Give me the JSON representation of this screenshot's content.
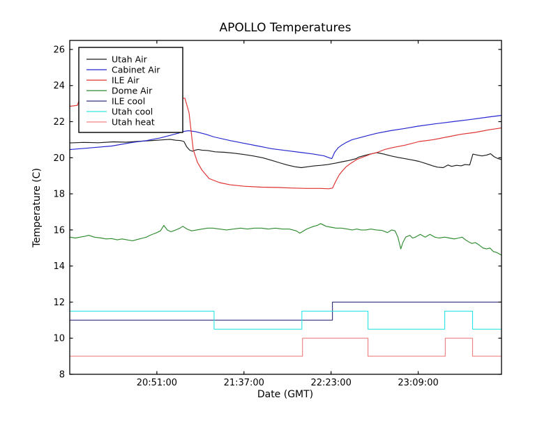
{
  "chart_data": {
    "type": "line",
    "title": "APOLLO Temperatures",
    "xlabel": "Date (GMT)",
    "ylabel": "Temperature (C)",
    "grid": false,
    "legend_position": "upper left",
    "x_unit": "minutes after 20:00 GMT",
    "x_range": [
      5,
      233
    ],
    "y_range": [
      8,
      26.5
    ],
    "y_ticks": [
      8,
      10,
      12,
      14,
      16,
      18,
      20,
      22,
      24,
      26
    ],
    "x_ticks": [
      {
        "t": 51,
        "label": "20:51:00"
      },
      {
        "t": 97,
        "label": "21:37:00"
      },
      {
        "t": 143,
        "label": "22:23:00"
      },
      {
        "t": 189,
        "label": "23:09:00"
      }
    ],
    "series": [
      {
        "name": "Utah Air",
        "color": "#1a1a1a",
        "points": [
          [
            5,
            20.82
          ],
          [
            12,
            20.85
          ],
          [
            20,
            20.83
          ],
          [
            28,
            20.88
          ],
          [
            35,
            20.86
          ],
          [
            43,
            20.92
          ],
          [
            50,
            20.96
          ],
          [
            55,
            21.0
          ],
          [
            58,
            21.02
          ],
          [
            61,
            20.97
          ],
          [
            63.5,
            20.95
          ],
          [
            65.3,
            20.9
          ],
          [
            66.8,
            20.6
          ],
          [
            68.3,
            20.42
          ],
          [
            69.8,
            20.36
          ],
          [
            71.3,
            20.42
          ],
          [
            72.8,
            20.46
          ],
          [
            74.8,
            20.42
          ],
          [
            77.8,
            20.4
          ],
          [
            81.8,
            20.33
          ],
          [
            86.8,
            20.3
          ],
          [
            91.8,
            20.25
          ],
          [
            96.8,
            20.18
          ],
          [
            101.8,
            20.1
          ],
          [
            106.8,
            20.0
          ],
          [
            111.8,
            19.85
          ],
          [
            115.8,
            19.72
          ],
          [
            119.8,
            19.6
          ],
          [
            123.8,
            19.5
          ],
          [
            127.3,
            19.45
          ],
          [
            130.8,
            19.5
          ],
          [
            134.3,
            19.55
          ],
          [
            137.8,
            19.58
          ],
          [
            141.3,
            19.62
          ],
          [
            145.3,
            19.7
          ],
          [
            149,
            19.78
          ],
          [
            152.5,
            19.85
          ],
          [
            156.2,
            19.95
          ],
          [
            157.7,
            20.04
          ],
          [
            159.9,
            20.1
          ],
          [
            163.6,
            20.2
          ],
          [
            167.2,
            20.28
          ],
          [
            170.9,
            20.2
          ],
          [
            174.6,
            20.1
          ],
          [
            178.3,
            20.02
          ],
          [
            181.9,
            19.95
          ],
          [
            185.7,
            19.88
          ],
          [
            189.4,
            19.8
          ],
          [
            193,
            19.68
          ],
          [
            196.7,
            19.55
          ],
          [
            199.2,
            19.48
          ],
          [
            202.2,
            19.45
          ],
          [
            204.7,
            19.6
          ],
          [
            206.7,
            19.52
          ],
          [
            209.2,
            19.58
          ],
          [
            211.7,
            19.55
          ],
          [
            213.7,
            19.62
          ],
          [
            216.2,
            19.6
          ],
          [
            217.9,
            20.2
          ],
          [
            220.2,
            20.15
          ],
          [
            222.7,
            20.1
          ],
          [
            225.2,
            20.15
          ],
          [
            227.2,
            20.22
          ],
          [
            229.2,
            20.05
          ],
          [
            231.2,
            19.95
          ],
          [
            233,
            19.9
          ]
        ]
      },
      {
        "name": "Cabinet Air",
        "color": "#2525cf",
        "points": [
          [
            5,
            20.45
          ],
          [
            16.1,
            20.55
          ],
          [
            27.1,
            20.65
          ],
          [
            38.2,
            20.85
          ],
          [
            45.5,
            20.95
          ],
          [
            52.9,
            21.1
          ],
          [
            58.4,
            21.25
          ],
          [
            62.1,
            21.35
          ],
          [
            64.7,
            21.45
          ],
          [
            67.6,
            21.5
          ],
          [
            71.3,
            21.45
          ],
          [
            76.8,
            21.3
          ],
          [
            81.2,
            21.15
          ],
          [
            89.7,
            20.95
          ],
          [
            97,
            20.8
          ],
          [
            104.4,
            20.65
          ],
          [
            111.8,
            20.5
          ],
          [
            119.1,
            20.4
          ],
          [
            126.5,
            20.3
          ],
          [
            133.8,
            20.2
          ],
          [
            139.4,
            20.1
          ],
          [
            141.9,
            20.0
          ],
          [
            143.4,
            19.95
          ],
          [
            144.9,
            20.3
          ],
          [
            146.7,
            20.55
          ],
          [
            148.6,
            20.7
          ],
          [
            151.1,
            20.85
          ],
          [
            154.1,
            21.0
          ],
          [
            157.8,
            21.1
          ],
          [
            161.4,
            21.2
          ],
          [
            167,
            21.35
          ],
          [
            174.3,
            21.5
          ],
          [
            181.7,
            21.62
          ],
          [
            189,
            21.75
          ],
          [
            198.2,
            21.88
          ],
          [
            207.4,
            22.0
          ],
          [
            216.6,
            22.12
          ],
          [
            225.8,
            22.25
          ],
          [
            233,
            22.35
          ]
        ]
      },
      {
        "name": "ILE Air",
        "color": "#e03030",
        "points": [
          [
            5,
            22.85
          ],
          [
            9,
            22.9
          ],
          [
            10.3,
            23.3
          ],
          [
            65.8,
            23.3
          ],
          [
            68,
            22.5
          ],
          [
            70.2,
            20.45
          ],
          [
            72.4,
            19.75
          ],
          [
            74.9,
            19.3
          ],
          [
            78.6,
            18.85
          ],
          [
            84.1,
            18.62
          ],
          [
            89.6,
            18.5
          ],
          [
            97,
            18.42
          ],
          [
            106.2,
            18.37
          ],
          [
            115.4,
            18.35
          ],
          [
            122.7,
            18.32
          ],
          [
            130.1,
            18.3
          ],
          [
            137.4,
            18.3
          ],
          [
            141.8,
            18.28
          ],
          [
            143.8,
            18.32
          ],
          [
            145.5,
            18.7
          ],
          [
            147.3,
            19.05
          ],
          [
            149.2,
            19.3
          ],
          [
            151,
            19.5
          ],
          [
            152.8,
            19.65
          ],
          [
            156.5,
            19.9
          ],
          [
            160.2,
            20.05
          ],
          [
            163.9,
            20.2
          ],
          [
            167.5,
            20.3
          ],
          [
            171.2,
            20.45
          ],
          [
            174.9,
            20.55
          ],
          [
            182.2,
            20.7
          ],
          [
            189.6,
            20.9
          ],
          [
            196.9,
            21.0
          ],
          [
            204.3,
            21.15
          ],
          [
            211.7,
            21.3
          ],
          [
            219,
            21.4
          ],
          [
            226.4,
            21.55
          ],
          [
            233,
            21.65
          ]
        ]
      },
      {
        "name": "Dome Air",
        "color": "#2d8b2d",
        "points": [
          [
            5,
            15.6
          ],
          [
            8,
            15.55
          ],
          [
            10.5,
            15.6
          ],
          [
            13.1,
            15.65
          ],
          [
            15,
            15.7
          ],
          [
            17.9,
            15.6
          ],
          [
            21.6,
            15.55
          ],
          [
            24.2,
            15.5
          ],
          [
            27.1,
            15.52
          ],
          [
            30.1,
            15.45
          ],
          [
            32.6,
            15.5
          ],
          [
            35.2,
            15.45
          ],
          [
            38.2,
            15.4
          ],
          [
            40,
            15.45
          ],
          [
            41.8,
            15.5
          ],
          [
            43.7,
            15.55
          ],
          [
            45.5,
            15.6
          ],
          [
            47.3,
            15.7
          ],
          [
            49.2,
            15.78
          ],
          [
            51,
            15.85
          ],
          [
            52.9,
            15.95
          ],
          [
            54.7,
            16.25
          ],
          [
            56.5,
            16.0
          ],
          [
            58.4,
            15.9
          ],
          [
            61,
            16.0
          ],
          [
            63.2,
            16.1
          ],
          [
            64.7,
            16.2
          ],
          [
            66.9,
            16.05
          ],
          [
            69.4,
            15.95
          ],
          [
            72,
            16.0
          ],
          [
            74.9,
            16.05
          ],
          [
            77.9,
            16.1
          ],
          [
            80.5,
            16.1
          ],
          [
            84.1,
            16.05
          ],
          [
            87.8,
            16.0
          ],
          [
            91.5,
            16.05
          ],
          [
            95.2,
            16.1
          ],
          [
            98.8,
            16.05
          ],
          [
            102.5,
            16.1
          ],
          [
            106.2,
            16.1
          ],
          [
            109.9,
            16.05
          ],
          [
            113.6,
            16.1
          ],
          [
            117.2,
            16.05
          ],
          [
            120.9,
            16.05
          ],
          [
            124.6,
            15.95
          ],
          [
            126.5,
            15.82
          ],
          [
            130.1,
            16.05
          ],
          [
            133.8,
            16.2
          ],
          [
            135.7,
            16.25
          ],
          [
            137.5,
            16.35
          ],
          [
            140.4,
            16.2
          ],
          [
            143,
            16.15
          ],
          [
            145.6,
            16.1
          ],
          [
            148.5,
            16.1
          ],
          [
            151.5,
            16.05
          ],
          [
            154.1,
            16.0
          ],
          [
            156.6,
            16.05
          ],
          [
            158.8,
            16.0
          ],
          [
            161.4,
            16.0
          ],
          [
            164,
            16.05
          ],
          [
            166.9,
            16.0
          ],
          [
            169.9,
            15.97
          ],
          [
            172.8,
            15.85
          ],
          [
            175,
            16.0
          ],
          [
            176.8,
            15.95
          ],
          [
            178.3,
            15.6
          ],
          [
            179.8,
            14.95
          ],
          [
            180.9,
            15.3
          ],
          [
            182.4,
            15.6
          ],
          [
            184.6,
            15.7
          ],
          [
            186,
            15.55
          ],
          [
            187.5,
            15.6
          ],
          [
            190.1,
            15.75
          ],
          [
            192.7,
            15.6
          ],
          [
            195.2,
            15.75
          ],
          [
            197.8,
            15.6
          ],
          [
            200,
            15.55
          ],
          [
            203,
            15.6
          ],
          [
            205.5,
            15.55
          ],
          [
            208.1,
            15.5
          ],
          [
            210.3,
            15.55
          ],
          [
            212.2,
            15.6
          ],
          [
            214,
            15.45
          ],
          [
            215.5,
            15.35
          ],
          [
            217.3,
            15.25
          ],
          [
            219.2,
            15.3
          ],
          [
            221.4,
            15.15
          ],
          [
            223.2,
            15.0
          ],
          [
            225,
            14.95
          ],
          [
            226.9,
            15.0
          ],
          [
            228.7,
            14.8
          ],
          [
            230.5,
            14.75
          ],
          [
            233,
            14.6
          ]
        ]
      },
      {
        "name": "ILE cool",
        "color": "#32327f",
        "points": [
          [
            5,
            11
          ],
          [
            143.7,
            11
          ],
          [
            143.7,
            12
          ],
          [
            233,
            12
          ]
        ]
      },
      {
        "name": "Utah cool",
        "color": "#2ee6e6",
        "points": [
          [
            5,
            11.5
          ],
          [
            81.2,
            11.5
          ],
          [
            81.2,
            10.5
          ],
          [
            127.6,
            10.5
          ],
          [
            127.6,
            11.5
          ],
          [
            162.5,
            11.5
          ],
          [
            162.5,
            10.5
          ],
          [
            203,
            10.5
          ],
          [
            203,
            11.5
          ],
          [
            217.7,
            11.5
          ],
          [
            217.7,
            10.5
          ],
          [
            233,
            10.5
          ]
        ]
      },
      {
        "name": "Utah heat",
        "color": "#f08080",
        "points": [
          [
            5,
            9
          ],
          [
            127.9,
            9
          ],
          [
            127.9,
            10
          ],
          [
            162.5,
            10
          ],
          [
            162.5,
            9
          ],
          [
            203.3,
            9
          ],
          [
            203.3,
            10
          ],
          [
            217.7,
            10
          ],
          [
            217.7,
            9
          ],
          [
            233,
            9
          ]
        ]
      }
    ]
  }
}
